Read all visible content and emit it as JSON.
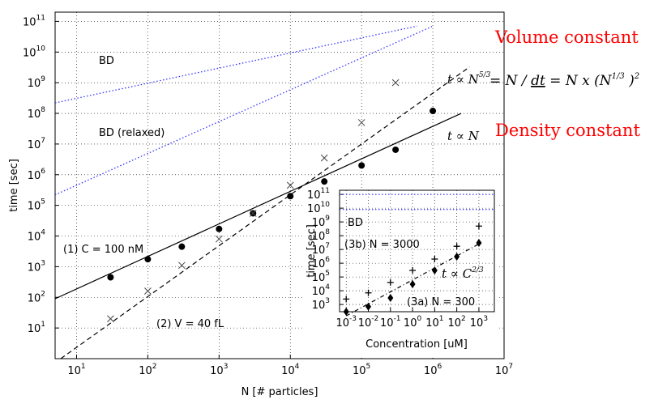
{
  "chart_data": [
    {
      "type": "scatter",
      "xscale": "log",
      "yscale": "log",
      "xlim": [
        5,
        10000000
      ],
      "ylim": [
        1,
        200000000000
      ],
      "xlabel": "N [# particles]",
      "ylabel": "time [sec]",
      "grid": true,
      "x_ticks": [
        "10^1",
        "10^2",
        "10^3",
        "10^4",
        "10^5",
        "10^6",
        "10^7"
      ],
      "y_ticks": [
        "10^1",
        "10^2",
        "10^3",
        "10^4",
        "10^5",
        "10^6",
        "10^7",
        "10^8",
        "10^9",
        "10^10",
        "10^11"
      ],
      "series": [
        {
          "marker": "filled circle",
          "x": [
            30,
            100,
            300,
            1000,
            3000,
            10000,
            30000,
            100000,
            300000,
            1000000
          ],
          "y": [
            450,
            1750,
            4500,
            17000,
            55000,
            200000,
            600000,
            2000000,
            6500000,
            120000000
          ]
        },
        {
          "marker": "x",
          "x": [
            30,
            100,
            300,
            1000,
            3000,
            10000,
            30000,
            100000,
            300000
          ],
          "y": [
            20,
            160,
            1100,
            8000,
            55000,
            450000,
            3500000,
            50000000,
            1000000000
          ]
        }
      ],
      "lines": [
        {
          "style": "solid",
          "color": "#000000",
          "x": [
            5,
            2500000
          ],
          "y": [
            90,
            100000000
          ]
        },
        {
          "style": "dashed",
          "color": "#000000",
          "x": [
            6,
            3300000
          ],
          "y": [
            1,
            3300000000
          ]
        },
        {
          "style": "dotted",
          "color": "#3333ff",
          "x": [
            5,
            600000
          ],
          "y": [
            220000000,
            70000000000
          ]
        },
        {
          "style": "dotted",
          "color": "#3333ff",
          "x": [
            5,
            1000000
          ],
          "y": [
            220000,
            70000000000
          ]
        }
      ],
      "annotations": {
        "bd": "BD",
        "bd_relaxed": "BD (relaxed)",
        "c_label": "(1) C = 100 nM",
        "v_label": "(2) V = 40 fL",
        "t_prop_n": "t ∝ N",
        "t_prop_n53_prefix": "t ∝ N",
        "t_prop_n53_exp": "5/3"
      }
    },
    {
      "type": "scatter",
      "xscale": "log",
      "yscale": "log",
      "xlim": [
        0.0005,
        5000
      ],
      "ylim": [
        300,
        200000000000
      ],
      "xlabel": "Concentration [uM]",
      "ylabel": "time [sec]",
      "grid": true,
      "x_ticks": [
        "10^-3",
        "10^-2",
        "10^-1",
        "10^0",
        "10^1",
        "10^2",
        "10^3"
      ],
      "y_ticks": [
        "10^3",
        "10^4",
        "10^5",
        "10^6",
        "10^7",
        "10^8",
        "10^9",
        "10^10",
        "10^11"
      ],
      "series": [
        {
          "marker": "plus",
          "x": [
            0.001,
            0.01,
            0.1,
            1,
            10,
            100,
            1000
          ],
          "y": [
            2500,
            7000,
            40000,
            300000,
            2000000,
            17000000,
            500000000
          ]
        },
        {
          "marker": "filled diamond",
          "x": [
            0.001,
            0.01,
            0.1,
            1,
            10,
            100,
            1000
          ],
          "y": [
            300,
            700,
            3000,
            30000,
            300000,
            3000000,
            30000000
          ]
        }
      ],
      "lines": [
        {
          "style": "dashdot",
          "color": "#000000",
          "x": [
            0.001,
            1000
          ],
          "y": [
            150,
            25000000
          ]
        },
        {
          "style": "dotted",
          "color": "#3333ff",
          "x": [
            0.0005,
            5000
          ],
          "y": [
            100000000000,
            100000000000
          ]
        },
        {
          "style": "dotted",
          "color": "#3333ff",
          "x": [
            0.0005,
            5000
          ],
          "y": [
            8000000000,
            8000000000
          ]
        }
      ],
      "annotations": {
        "bd": "BD",
        "n3000": "(3b) N = 3000",
        "n300": "(3a) N = 300",
        "t_prop_c_prefix": "t ∝ C",
        "t_prop_c_exp": "2/3"
      }
    }
  ],
  "side_text": {
    "volume_constant": "Volume constant",
    "density_constant": "Density constant",
    "equation_prefix": "= N / ",
    "equation_dt": "dt",
    "equation_mid": " = N x (N",
    "equation_exp_inner": "1/3",
    "equation_close": " )",
    "equation_exp_outer": "2"
  },
  "colors": {
    "accent_red": "#ff0000",
    "bd_blue": "#3333ff"
  }
}
